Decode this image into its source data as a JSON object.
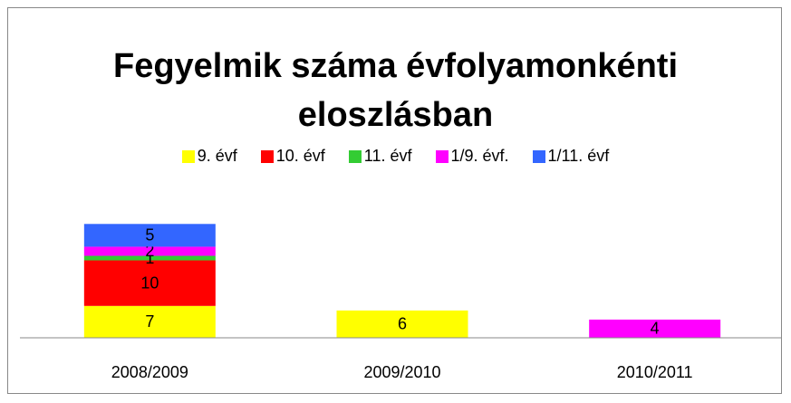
{
  "chart_data": {
    "type": "stacked_bar",
    "title": "Fegyelmik száma évfolyamonkénti eloszlásban",
    "categories": [
      "2008/2009",
      "2009/2010",
      "2010/2011"
    ],
    "series": [
      {
        "name": "9. évf",
        "color": "#ffff00",
        "values": [
          7,
          6,
          null
        ]
      },
      {
        "name": "10. évf",
        "color": "#ff0000",
        "values": [
          10,
          null,
          null
        ]
      },
      {
        "name": "11. évf",
        "color": "#33cc33",
        "values": [
          1,
          null,
          null
        ]
      },
      {
        "name": "1/9. évf.",
        "color": "#ff00ff",
        "values": [
          2,
          null,
          4
        ]
      },
      {
        "name": "1/11. évf",
        "color": "#3366ff",
        "values": [
          5,
          null,
          null
        ]
      }
    ],
    "ylim": [
      0,
      35
    ]
  }
}
